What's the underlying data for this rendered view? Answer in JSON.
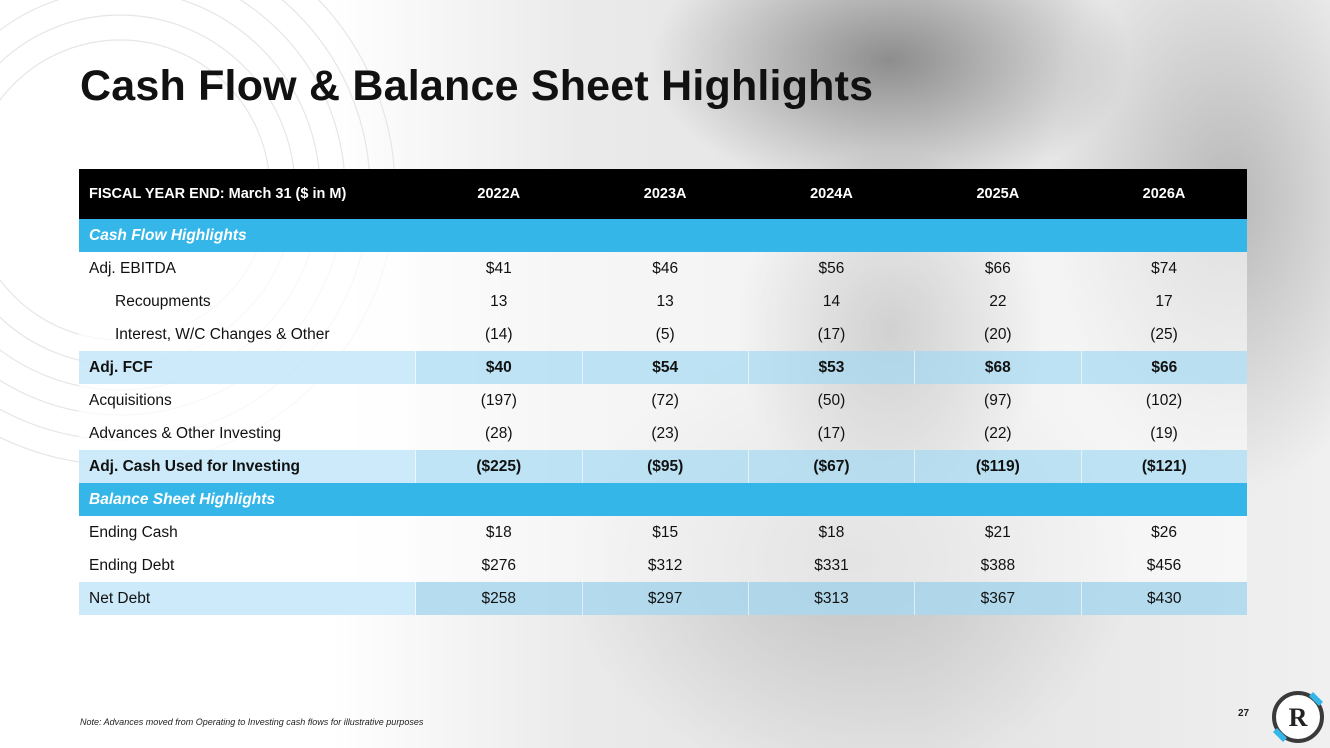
{
  "title": "Cash Flow & Balance Sheet Highlights",
  "table": {
    "header": [
      "FISCAL YEAR END: March 31 ($ in M)",
      "2022A",
      "2023A",
      "2024A",
      "2025A",
      "2026A"
    ],
    "sections": {
      "cash_flow": "Cash Flow Highlights",
      "balance_sheet": "Balance Sheet Highlights"
    },
    "rows": [
      {
        "label": "Adj. EBITDA",
        "values": [
          "$41",
          "$46",
          "$56",
          "$66",
          "$74"
        ]
      },
      {
        "label": "Recoupments",
        "values": [
          "13",
          "13",
          "14",
          "22",
          "17"
        ]
      },
      {
        "label": "Interest, W/C Changes & Other",
        "values": [
          "(14)",
          "(5)",
          "(17)",
          "(20)",
          "(25)"
        ]
      },
      {
        "label": "Adj. FCF",
        "values": [
          "$40",
          "$54",
          "$53",
          "$68",
          "$66"
        ]
      },
      {
        "label": "Acquisitions",
        "values": [
          "(197)",
          "(72)",
          "(50)",
          "(97)",
          "(102)"
        ]
      },
      {
        "label": "Advances & Other Investing",
        "values": [
          "(28)",
          "(23)",
          "(17)",
          "(22)",
          "(19)"
        ]
      },
      {
        "label": "Adj. Cash Used for Investing",
        "values": [
          "($225)",
          "($95)",
          "($67)",
          "($119)",
          "($121)"
        ]
      },
      {
        "label": "Ending Cash",
        "values": [
          "$18",
          "$15",
          "$18",
          "$21",
          "$26"
        ]
      },
      {
        "label": "Ending Debt",
        "values": [
          "$276",
          "$312",
          "$331",
          "$388",
          "$456"
        ]
      },
      {
        "label": "Net Debt",
        "values": [
          "$258",
          "$297",
          "$313",
          "$367",
          "$430"
        ]
      }
    ]
  },
  "note": "Note: Advances moved from Operating to Investing cash flows for illustrative purposes",
  "page_number": "27",
  "logo": {
    "letter": "R",
    "accent": "#35b6e9",
    "icon": "brand-logo-icon"
  },
  "colors": {
    "header_bg": "#000000",
    "section_bg": "#35b6e9",
    "highlight_bg": "#c8e8f8"
  }
}
